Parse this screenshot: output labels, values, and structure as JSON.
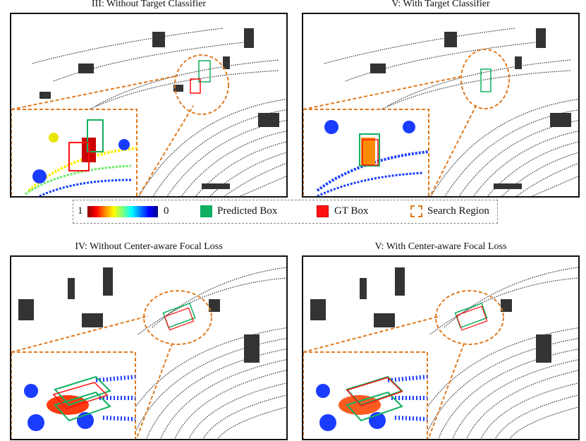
{
  "panels": [
    {
      "title": "III: Without Target Classifier"
    },
    {
      "title": "V: With Target Classifier"
    },
    {
      "title": "IV: Without Center-aware Focal Loss"
    },
    {
      "title": "V: With Center-aware Focal Loss"
    }
  ],
  "legend": {
    "scale_high": "1",
    "scale_low": "0",
    "predicted_box": "Predicted Box",
    "gt_box": "GT Box",
    "search_region": "Search Region"
  },
  "colors": {
    "predicted": "#10b060",
    "gt": "#ff1010",
    "search_region": "#e07a20",
    "points": "#333333"
  }
}
